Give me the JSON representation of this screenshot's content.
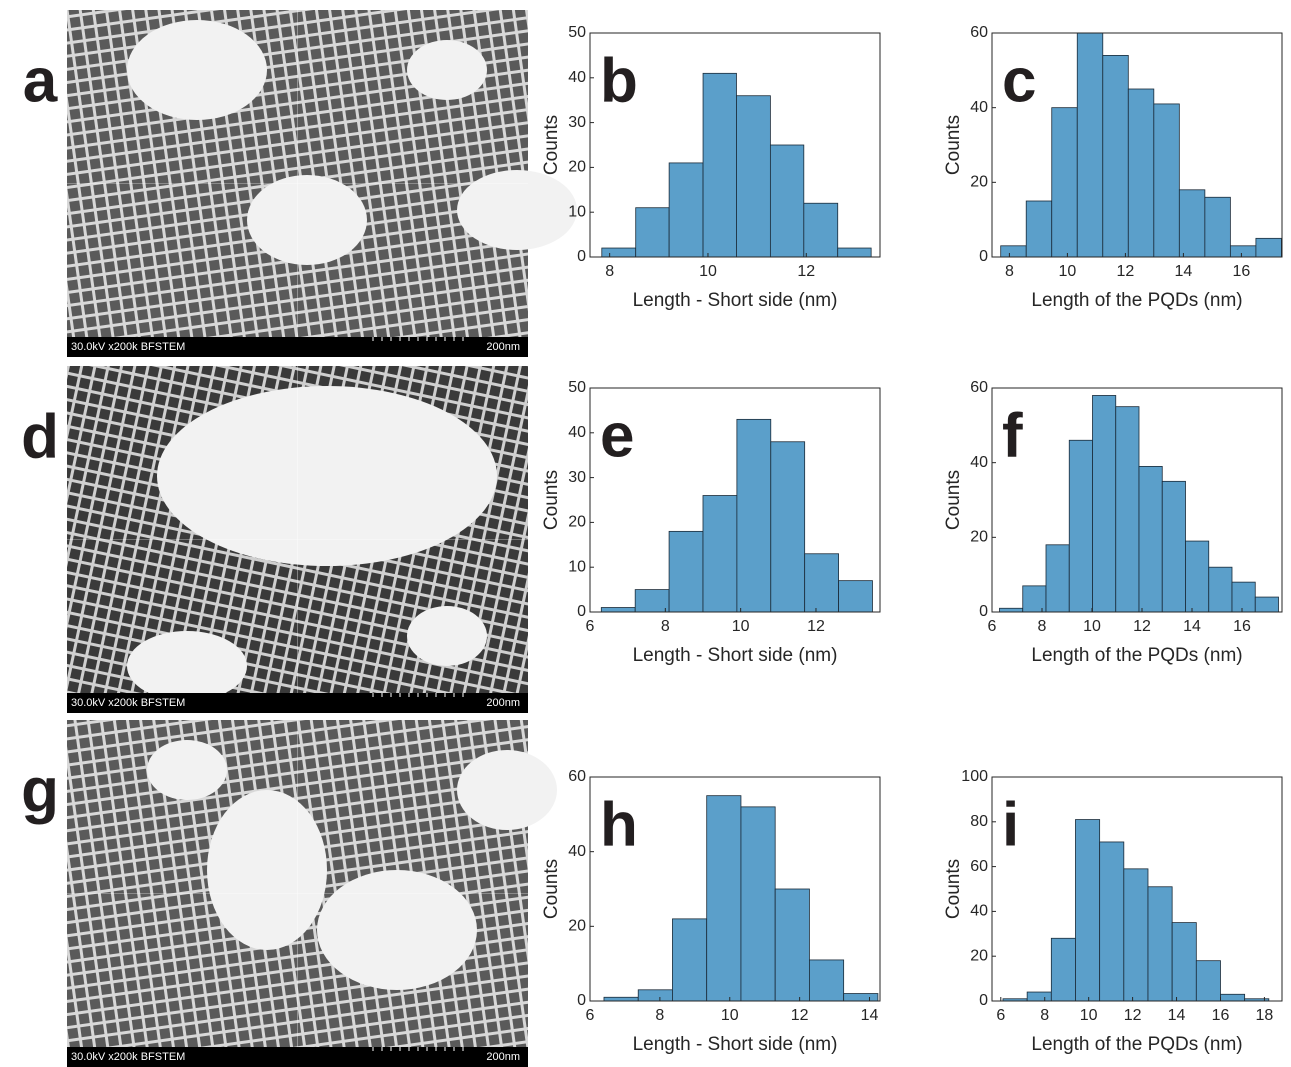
{
  "panels": [
    {
      "label": "a",
      "caption": "30.0kV x200k BFSTEM",
      "scale_bar": "200nm"
    },
    {
      "label": "d",
      "caption": "30.0kV x200k BFSTEM",
      "scale_bar": "200nm"
    },
    {
      "label": "g",
      "caption": "30.0kV x200k BFSTEM",
      "scale_bar": "200nm"
    }
  ],
  "chart_data": [
    {
      "type": "histogram",
      "label": "b",
      "xlabel": "Length - Short side (nm)",
      "ylabel": "Counts",
      "color": "#5b9fca",
      "bins": [
        7.84,
        8.53,
        9.21,
        9.9,
        10.58,
        11.27,
        11.95,
        12.64,
        13.32
      ],
      "values": [
        2,
        11,
        21,
        41,
        36,
        25,
        12,
        2
      ],
      "xlim": [
        7.6,
        13.5
      ],
      "xticks": [
        8,
        10,
        12
      ],
      "ylim": [
        0,
        50
      ],
      "yticks": [
        0,
        10,
        20,
        30,
        40,
        50
      ]
    },
    {
      "type": "histogram",
      "label": "c",
      "xlabel": "Length of the PQDs (nm)",
      "ylabel": "Counts",
      "color": "#5b9fca",
      "bins": [
        7.7,
        8.58,
        9.46,
        10.34,
        11.22,
        12.1,
        12.98,
        13.86,
        14.74,
        15.62,
        16.5,
        17.38
      ],
      "values": [
        3,
        15,
        40,
        60,
        54,
        45,
        41,
        18,
        16,
        3,
        5
      ],
      "xlim": [
        7.4,
        17.4
      ],
      "xticks": [
        8,
        10,
        12,
        14,
        16
      ],
      "ylim": [
        0,
        60
      ],
      "yticks": [
        0,
        20,
        40,
        60
      ]
    },
    {
      "type": "histogram",
      "label": "e",
      "xlabel": "Length - Short side (nm)",
      "ylabel": "Counts",
      "color": "#5b9fca",
      "bins": [
        6.3,
        7.2,
        8.1,
        9,
        9.9,
        10.8,
        11.7,
        12.6,
        13.5
      ],
      "values": [
        1,
        5,
        18,
        26,
        43,
        38,
        13,
        7
      ],
      "xlim": [
        6,
        13.7
      ],
      "xticks": [
        6,
        8,
        10,
        12
      ],
      "ylim": [
        0,
        50
      ],
      "yticks": [
        0,
        10,
        20,
        30,
        40,
        50
      ]
    },
    {
      "type": "histogram",
      "label": "f",
      "xlabel": "Length of the PQDs (nm)",
      "ylabel": "Counts",
      "color": "#5b9fca",
      "bins": [
        6.3,
        7.23,
        8.16,
        9.09,
        10.02,
        10.95,
        11.88,
        12.81,
        13.74,
        14.67,
        15.6,
        16.53,
        17.46
      ],
      "values": [
        1,
        7,
        18,
        46,
        58,
        55,
        39,
        35,
        19,
        12,
        8,
        4
      ],
      "xlim": [
        6,
        17.6
      ],
      "xticks": [
        6,
        8,
        10,
        12,
        14,
        16
      ],
      "ylim": [
        0,
        60
      ],
      "yticks": [
        0,
        20,
        40,
        60
      ]
    },
    {
      "type": "histogram",
      "label": "h",
      "xlabel": "Length - Short side (nm)",
      "ylabel": "Counts",
      "color": "#5b9fca",
      "bins": [
        6.4,
        7.38,
        8.36,
        9.34,
        10.32,
        11.3,
        12.28,
        13.26,
        14.24
      ],
      "values": [
        1,
        3,
        22,
        55,
        52,
        30,
        11,
        2
      ],
      "xlim": [
        6,
        14.3
      ],
      "xticks": [
        6,
        8,
        10,
        12,
        14
      ],
      "ylim": [
        0,
        60
      ],
      "yticks": [
        0,
        20,
        40,
        60
      ]
    },
    {
      "type": "histogram",
      "label": "i",
      "xlabel": "Length of the PQDs (nm)",
      "ylabel": "Counts",
      "color": "#5b9fca",
      "bins": [
        6.1,
        7.2,
        8.3,
        9.4,
        10.5,
        11.6,
        12.7,
        13.8,
        14.9,
        16,
        17.1,
        18.2
      ],
      "values": [
        1,
        4,
        28,
        81,
        71,
        59,
        51,
        35,
        18,
        3,
        1
      ],
      "xlim": [
        5.6,
        18.8
      ],
      "xticks": [
        6,
        8,
        10,
        12,
        14,
        16,
        18
      ],
      "ylim": [
        0,
        100
      ],
      "yticks": [
        0,
        20,
        40,
        60,
        80,
        100
      ]
    }
  ]
}
